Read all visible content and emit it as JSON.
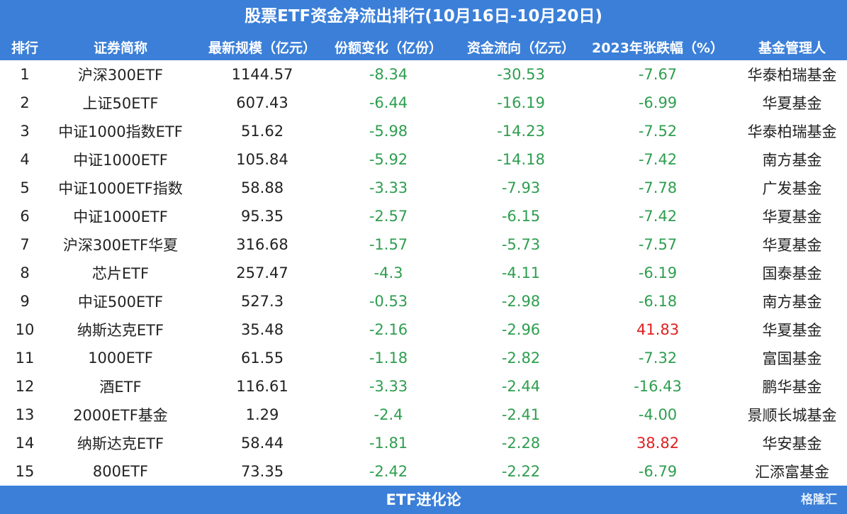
{
  "title": "股票ETF资金净流出排行(10月16日-10月20日)",
  "table": {
    "header": [
      "排行",
      "证券简称",
      "最新规模（亿元）",
      "份额变化（亿份）",
      "资金流向（亿元）",
      "2023年张跌幅（%）",
      "基金管理人"
    ],
    "rows": [
      [
        "1",
        "沪深300ETF",
        "1144.57",
        "-8.34",
        "-30.53",
        "-7.67",
        "华泰柏瑞基金"
      ],
      [
        "2",
        "上证50ETF",
        "607.43",
        "-6.44",
        "-16.19",
        "-6.99",
        "华夏基金"
      ],
      [
        "3",
        "中证1000指数ETF",
        "51.62",
        "-5.98",
        "-14.23",
        "-7.52",
        "华泰柏瑞基金"
      ],
      [
        "4",
        "中证1000ETF",
        "105.84",
        "-5.92",
        "-14.18",
        "-7.42",
        "南方基金"
      ],
      [
        "5",
        "中证1000ETF指数",
        "58.88",
        "-3.33",
        "-7.93",
        "-7.78",
        "广发基金"
      ],
      [
        "6",
        "中证1000ETF",
        "95.35",
        "-2.57",
        "-6.15",
        "-7.42",
        "华夏基金"
      ],
      [
        "7",
        "沪深300ETF华夏",
        "316.68",
        "-1.57",
        "-5.73",
        "-7.57",
        "华夏基金"
      ],
      [
        "8",
        "芯片ETF",
        "257.47",
        "-4.3",
        "-4.11",
        "-6.19",
        "国泰基金"
      ],
      [
        "9",
        "中证500ETF",
        "527.3",
        "-0.53",
        "-2.98",
        "-6.18",
        "南方基金"
      ],
      [
        "10",
        "纳斯达克ETF",
        "35.48",
        "-2.16",
        "-2.96",
        "41.83",
        "华夏基金"
      ],
      [
        "11",
        "1000ETF",
        "61.55",
        "-1.18",
        "-2.82",
        "-7.32",
        "富国基金"
      ],
      [
        "12",
        "酒ETF",
        "116.61",
        "-3.33",
        "-2.44",
        "-16.43",
        "鹏华基金"
      ],
      [
        "13",
        "2000ETF基金",
        "1.29",
        "-2.4",
        "-2.41",
        "-4.00",
        "景顺长城基金"
      ],
      [
        "14",
        "纳斯达克ETF",
        "58.44",
        "-1.81",
        "-2.28",
        "38.82",
        "华安基金"
      ],
      [
        "15",
        "800ETF",
        "73.35",
        "-2.42",
        "-2.22",
        "-6.79",
        "汇添富基金"
      ]
    ]
  },
  "footer": "ETF进化论",
  "watermark": "格隆汇"
}
